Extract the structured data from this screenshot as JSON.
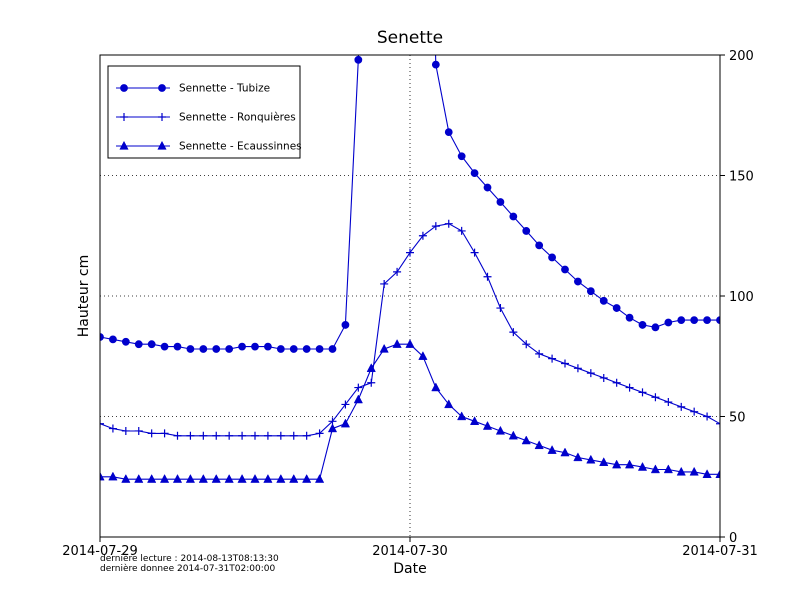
{
  "chart_data": {
    "type": "line",
    "title": "Senette",
    "xlabel": "Date",
    "ylabel": "Hauteur cm",
    "x_tick_labels": [
      "2014-07-29",
      "2014-07-30",
      "2014-07-31"
    ],
    "x_tick_hours": [
      0,
      24,
      48
    ],
    "y_ticks": [
      0,
      50,
      100,
      150,
      200
    ],
    "ylim": [
      0,
      200
    ],
    "xlim_hours": [
      0,
      48
    ],
    "grid": {
      "style": "dotted",
      "horizontal_at": [
        50,
        100,
        150
      ],
      "vertical_at_hours": [
        24
      ]
    },
    "legend_position": "upper left",
    "line_color": "#0000cc",
    "offscale_placeholder": 420,
    "x_hours": [
      0,
      1,
      2,
      3,
      4,
      5,
      6,
      7,
      8,
      9,
      10,
      11,
      12,
      13,
      14,
      15,
      16,
      17,
      18,
      19,
      20,
      21,
      22,
      23,
      24,
      25,
      26,
      27,
      28,
      29,
      30,
      31,
      32,
      33,
      34,
      35,
      36,
      37,
      38,
      39,
      40,
      41,
      42,
      43,
      44,
      45,
      46,
      47,
      48
    ],
    "series": [
      {
        "name": "Sennette - Tubize",
        "marker": "circle",
        "values": [
          83,
          82,
          81,
          80,
          80,
          79,
          79,
          78,
          78,
          78,
          78,
          79,
          79,
          79,
          78,
          78,
          78,
          78,
          78,
          88,
          198,
          null,
          null,
          null,
          null,
          null,
          196,
          168,
          158,
          151,
          145,
          139,
          133,
          127,
          121,
          116,
          111,
          106,
          102,
          98,
          95,
          91,
          88,
          87,
          89,
          90,
          90,
          90,
          90
        ]
      },
      {
        "name": "Sennette - Ronquières",
        "marker": "plus",
        "values": [
          47,
          45,
          44,
          44,
          43,
          43,
          42,
          42,
          42,
          42,
          42,
          42,
          42,
          42,
          42,
          42,
          42,
          43,
          48,
          55,
          62,
          64,
          105,
          110,
          118,
          125,
          129,
          130,
          127,
          118,
          108,
          95,
          85,
          80,
          76,
          74,
          72,
          70,
          68,
          66,
          64,
          62,
          60,
          58,
          56,
          54,
          52,
          50,
          47
        ]
      },
      {
        "name": "Sennette - Ecaussinnes",
        "marker": "triangle",
        "values": [
          25,
          25,
          24,
          24,
          24,
          24,
          24,
          24,
          24,
          24,
          24,
          24,
          24,
          24,
          24,
          24,
          24,
          24,
          45,
          47,
          57,
          70,
          78,
          80,
          80,
          75,
          62,
          55,
          50,
          48,
          46,
          44,
          42,
          40,
          38,
          36,
          35,
          33,
          32,
          31,
          30,
          30,
          29,
          28,
          28,
          27,
          27,
          26,
          26
        ]
      }
    ]
  },
  "footer": {
    "line1": "dernière lecture : 2014-08-13T08:13:30",
    "line2": "dernière donnee  2014-07-31T02:00:00"
  }
}
